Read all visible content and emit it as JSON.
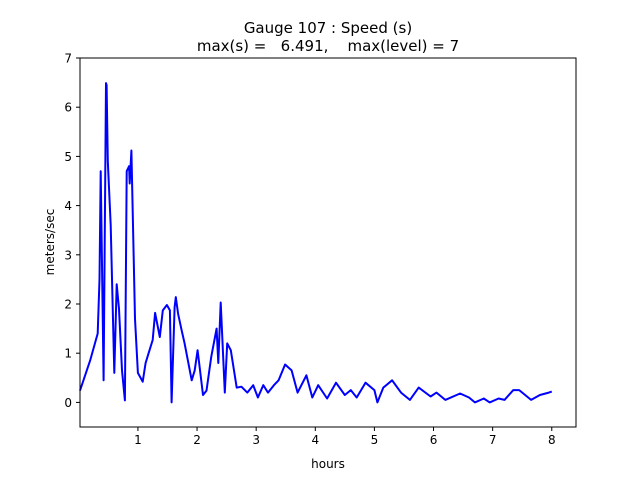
{
  "chart_data": {
    "type": "line",
    "title": "Gauge 107 : Speed (s)",
    "subtitle": "max(s) =   6.491,    max(level) = 7",
    "xlabel": "hours",
    "ylabel": "meters/sec",
    "xlim": [
      0.02,
      8.41
    ],
    "ylim": [
      -0.5,
      7
    ],
    "xticks": [
      1,
      2,
      3,
      4,
      5,
      6,
      7,
      8
    ],
    "xtick_labels": [
      "1",
      "2",
      "3",
      "4",
      "5",
      "6",
      "7",
      "8"
    ],
    "yticks": [
      0,
      1,
      2,
      3,
      4,
      5,
      6,
      7
    ],
    "ytick_labels": [
      "0",
      "1",
      "2",
      "3",
      "4",
      "5",
      "6",
      "7"
    ],
    "grid": false,
    "series": [
      {
        "name": "speed",
        "color": "#0000ff",
        "x": [
          0.02,
          0.19,
          0.32,
          0.35,
          0.37,
          0.42,
          0.46,
          0.47,
          0.49,
          0.54,
          0.6,
          0.64,
          0.68,
          0.73,
          0.78,
          0.81,
          0.85,
          0.86,
          0.89,
          0.95,
          1.0,
          1.08,
          1.13,
          1.18,
          1.25,
          1.29,
          1.37,
          1.42,
          1.49,
          1.54,
          1.57,
          1.62,
          1.64,
          1.68,
          1.74,
          1.79,
          1.91,
          1.96,
          2.01,
          2.1,
          2.16,
          2.24,
          2.33,
          2.36,
          2.4,
          2.47,
          2.51,
          2.57,
          2.67,
          2.75,
          2.85,
          2.95,
          3.03,
          3.12,
          3.2,
          3.3,
          3.38,
          3.49,
          3.6,
          3.7,
          3.85,
          3.95,
          4.05,
          4.2,
          4.35,
          4.5,
          4.6,
          4.7,
          4.85,
          5.0,
          5.05,
          5.15,
          5.3,
          5.45,
          5.6,
          5.75,
          5.95,
          6.05,
          6.2,
          6.45,
          6.6,
          6.7,
          6.85,
          6.95,
          7.1,
          7.2,
          7.35,
          7.45,
          7.65,
          7.8,
          7.95,
          8.0
        ],
        "y": [
          0.24,
          0.85,
          1.4,
          2.5,
          4.7,
          0.45,
          6.49,
          6.45,
          4.9,
          3.6,
          0.6,
          2.4,
          1.9,
          0.65,
          0.04,
          4.7,
          4.8,
          4.45,
          5.12,
          1.7,
          0.6,
          0.42,
          0.8,
          1.0,
          1.27,
          1.82,
          1.33,
          1.87,
          1.98,
          1.87,
          0.0,
          1.93,
          2.14,
          1.8,
          1.46,
          1.2,
          0.45,
          0.65,
          1.06,
          0.15,
          0.24,
          0.92,
          1.5,
          0.8,
          2.03,
          0.2,
          1.2,
          1.06,
          0.3,
          0.32,
          0.2,
          0.35,
          0.1,
          0.35,
          0.2,
          0.35,
          0.45,
          0.77,
          0.65,
          0.2,
          0.55,
          0.1,
          0.35,
          0.08,
          0.4,
          0.15,
          0.25,
          0.1,
          0.4,
          0.25,
          0.0,
          0.3,
          0.45,
          0.2,
          0.05,
          0.3,
          0.12,
          0.2,
          0.05,
          0.18,
          0.1,
          0.0,
          0.08,
          0.0,
          0.08,
          0.05,
          0.25,
          0.25,
          0.05,
          0.15,
          0.2,
          0.22
        ]
      }
    ]
  }
}
